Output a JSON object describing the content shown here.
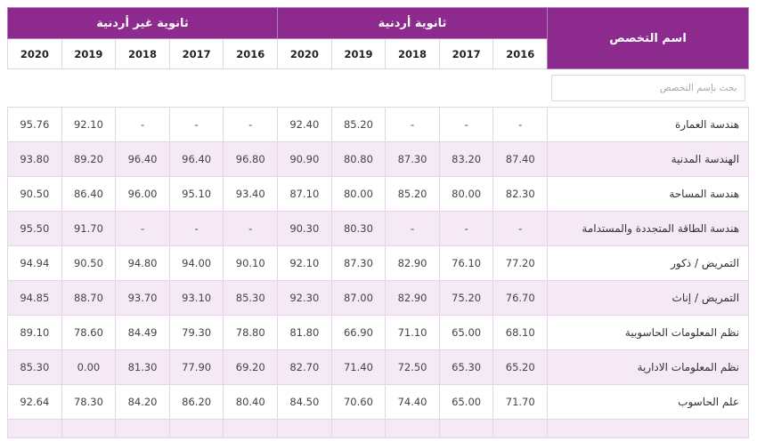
{
  "table": {
    "name_header": "اسم التخصص",
    "groups": [
      "ثانوية أردنية",
      "ثانوية غير أردنية"
    ],
    "years": [
      "2016",
      "2017",
      "2018",
      "2019",
      "2020"
    ],
    "search_placeholder": "بحث بإسم التخصص",
    "rows": [
      {
        "name": "هندسة العمارة",
        "jo": [
          "-",
          "-",
          "-",
          "85.20",
          "92.40"
        ],
        "nonjo": [
          "-",
          "-",
          "-",
          "92.10",
          "95.76"
        ]
      },
      {
        "name": "الهندسة المدنية",
        "jo": [
          "87.40",
          "83.20",
          "87.30",
          "80.80",
          "90.90"
        ],
        "nonjo": [
          "96.80",
          "96.40",
          "96.40",
          "89.20",
          "93.80"
        ]
      },
      {
        "name": "هندسة المساحة",
        "jo": [
          "82.30",
          "80.00",
          "85.20",
          "80.00",
          "87.10"
        ],
        "nonjo": [
          "93.40",
          "95.10",
          "96.00",
          "86.40",
          "90.50"
        ]
      },
      {
        "name": "هندسة الطاقة المتجددة والمستدامة",
        "jo": [
          "-",
          "-",
          "-",
          "80.30",
          "90.30"
        ],
        "nonjo": [
          "-",
          "-",
          "-",
          "91.70",
          "95.50"
        ]
      },
      {
        "name": "التمريض / ذكور",
        "jo": [
          "77.20",
          "76.10",
          "82.90",
          "87.30",
          "92.10"
        ],
        "nonjo": [
          "90.10",
          "94.00",
          "94.80",
          "90.50",
          "94.94"
        ]
      },
      {
        "name": "التمريض / إناث",
        "jo": [
          "76.70",
          "75.20",
          "82.90",
          "87.00",
          "92.30"
        ],
        "nonjo": [
          "85.30",
          "93.10",
          "93.70",
          "88.70",
          "94.85"
        ]
      },
      {
        "name": "نظم المعلومات الحاسوبية",
        "jo": [
          "68.10",
          "65.00",
          "71.10",
          "66.90",
          "81.80"
        ],
        "nonjo": [
          "78.80",
          "79.30",
          "84.49",
          "78.60",
          "89.10"
        ]
      },
      {
        "name": "نظم المعلومات الادارية",
        "jo": [
          "65.20",
          "65.30",
          "72.50",
          "71.40",
          "82.70"
        ],
        "nonjo": [
          "69.20",
          "77.90",
          "81.30",
          "0.00",
          "85.30"
        ]
      },
      {
        "name": "علم الحاسوب",
        "jo": [
          "71.70",
          "65.00",
          "74.40",
          "70.60",
          "84.50"
        ],
        "nonjo": [
          "80.40",
          "86.20",
          "84.20",
          "78.30",
          "92.64"
        ]
      }
    ]
  }
}
